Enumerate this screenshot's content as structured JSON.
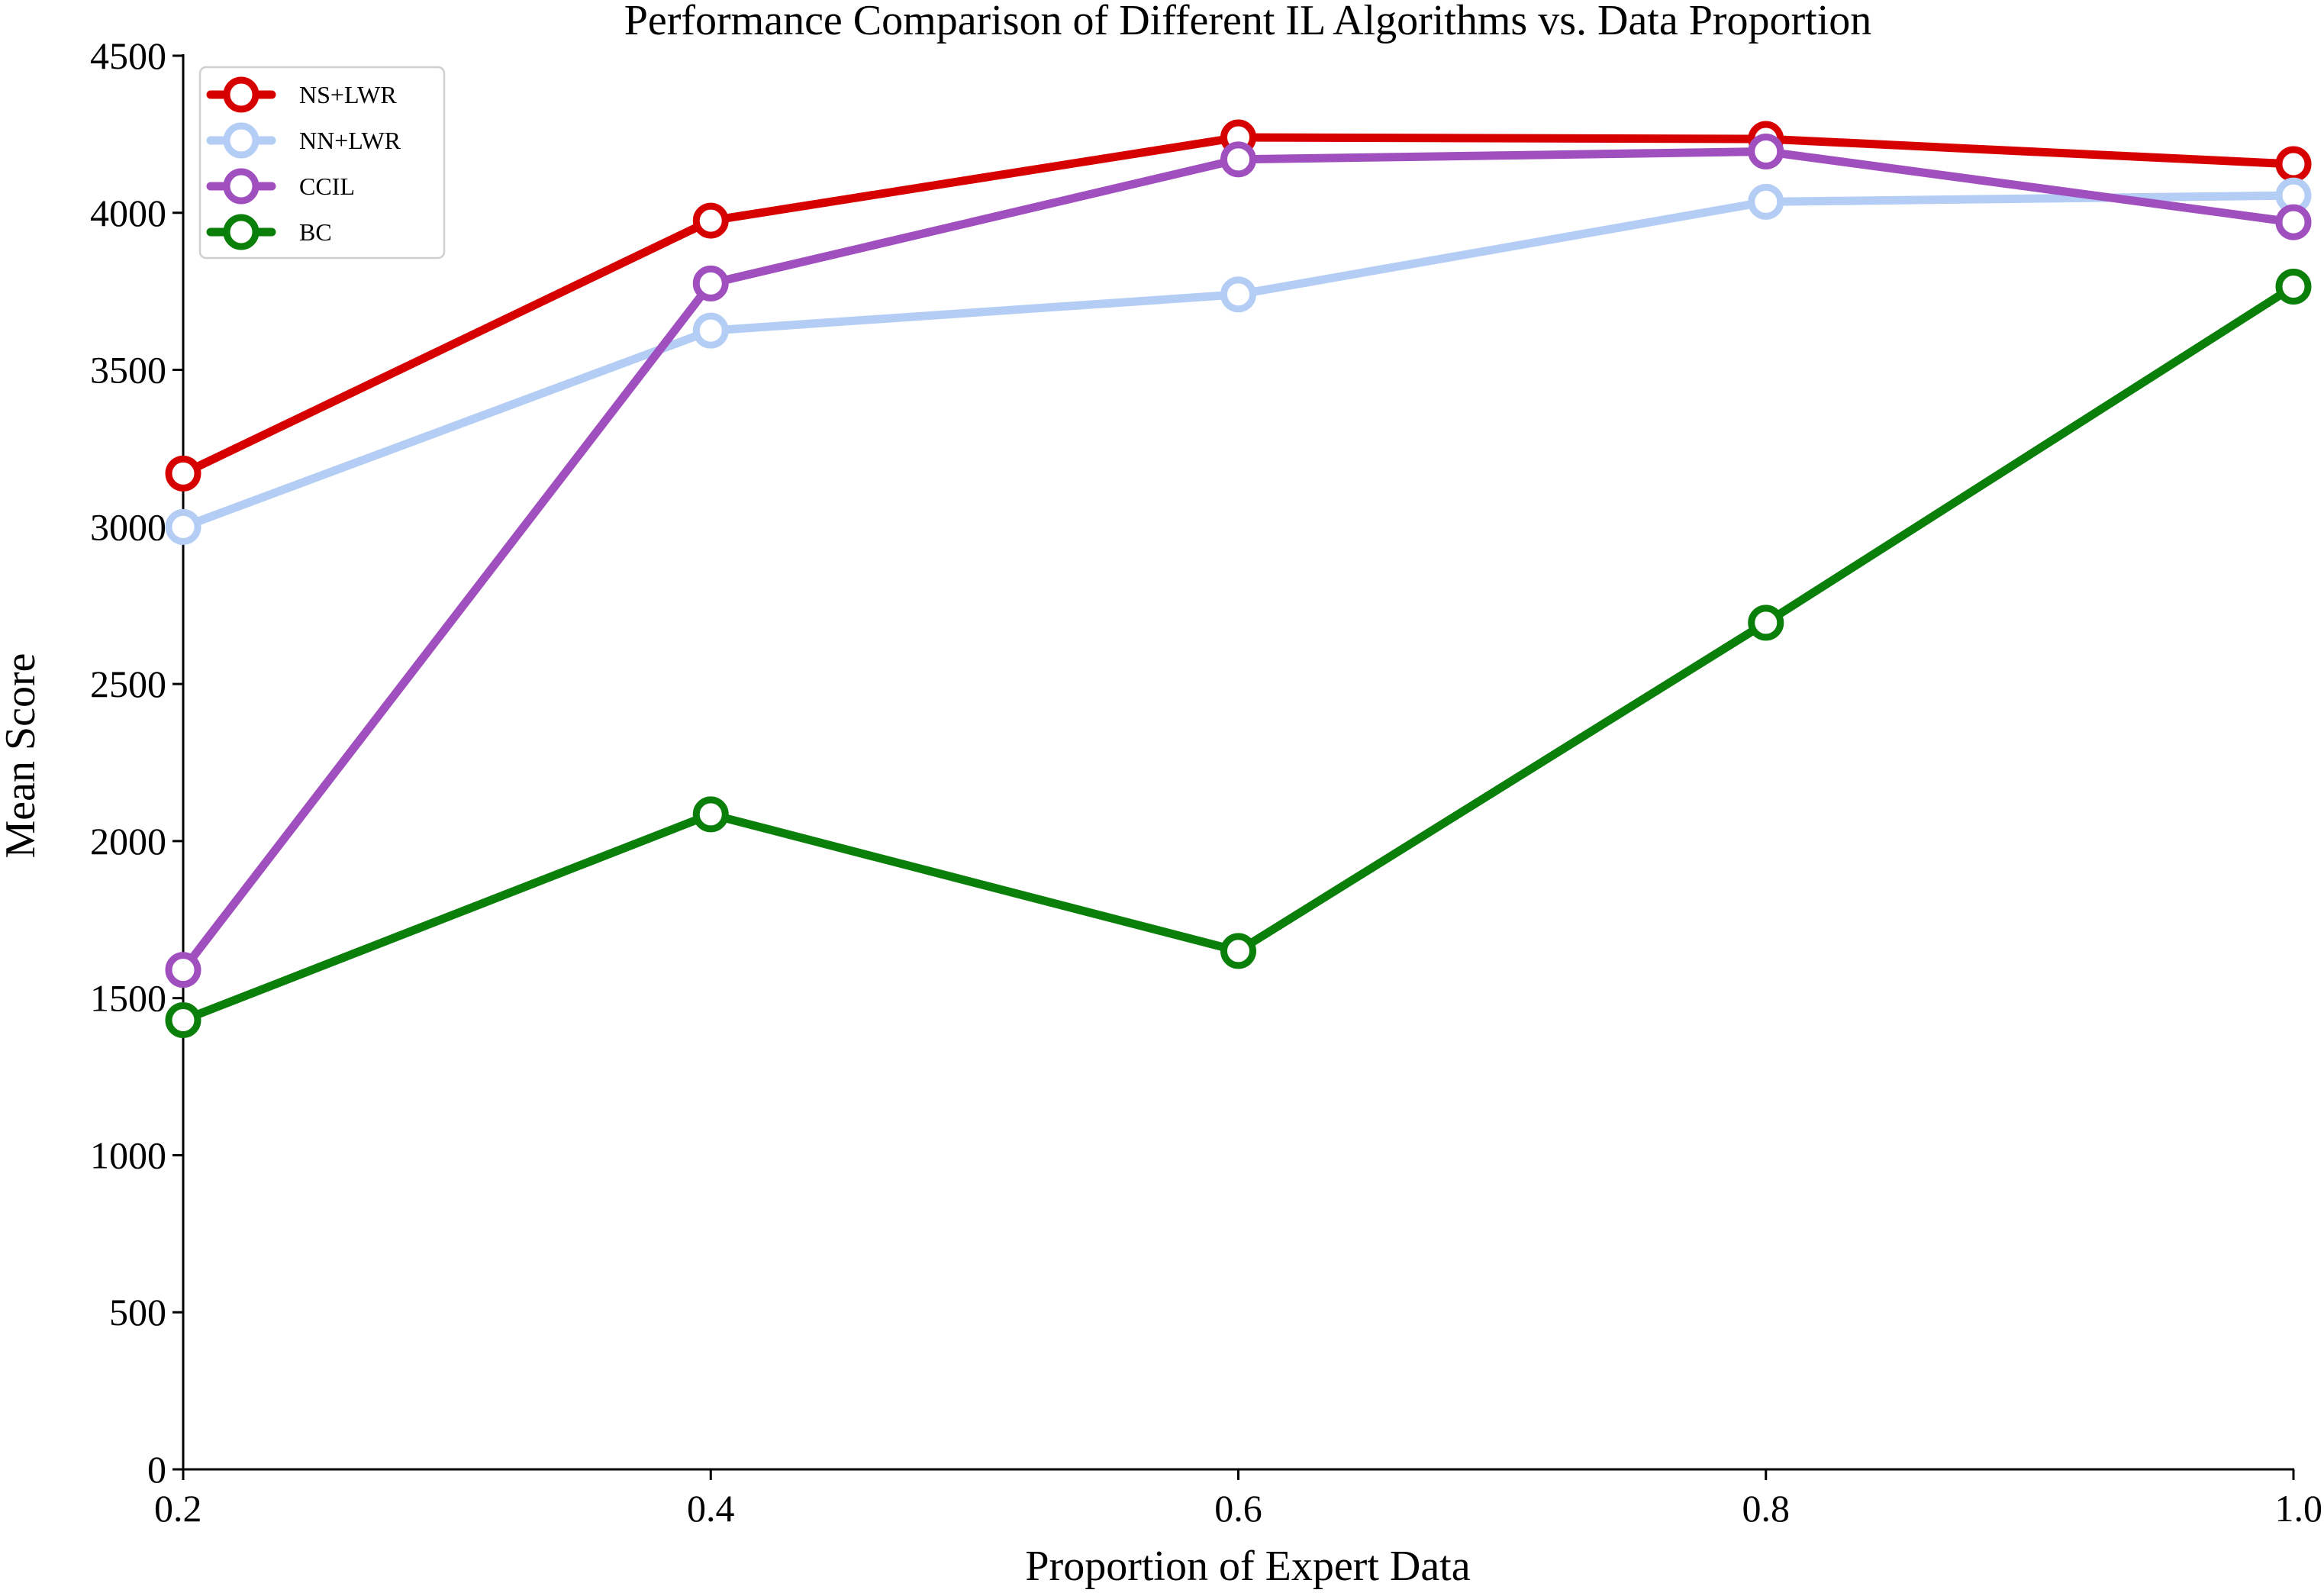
{
  "chart_data": {
    "type": "line",
    "title": "Performance Comparison of Different IL Algorithms vs. Data Proportion",
    "xlabel": "Proportion of Expert Data",
    "ylabel": "Mean Score",
    "x": [
      0.2,
      0.4,
      0.6,
      0.8,
      1.0
    ],
    "x_tick_labels": [
      "0.2",
      "0.4",
      "0.6",
      "0.8",
      "1.0"
    ],
    "y_ticks": [
      0,
      500,
      1000,
      1500,
      2000,
      2500,
      3000,
      3500,
      4000,
      4500
    ],
    "y_tick_labels": [
      "0",
      "500",
      "1000",
      "1500",
      "2000",
      "2500",
      "3000",
      "3500",
      "4000",
      "4500"
    ],
    "xlim": [
      0.2,
      1.0
    ],
    "ylim": [
      0,
      4500
    ],
    "grid": false,
    "legend_position": "top-left",
    "series": [
      {
        "name": "NS+LWR",
        "color": "#d70000",
        "values": [
          3170,
          3975,
          4240,
          4235,
          4155
        ]
      },
      {
        "name": "NN+LWR",
        "color": "#b3cdf5",
        "values": [
          3000,
          3625,
          3740,
          4035,
          4055
        ]
      },
      {
        "name": "CCIL",
        "color": "#a04fbe",
        "values": [
          1590,
          3775,
          4170,
          4195,
          3970
        ]
      },
      {
        "name": "BC",
        "color": "#0a7f0a",
        "values": [
          1430,
          2085,
          1650,
          2695,
          3765
        ]
      }
    ]
  }
}
